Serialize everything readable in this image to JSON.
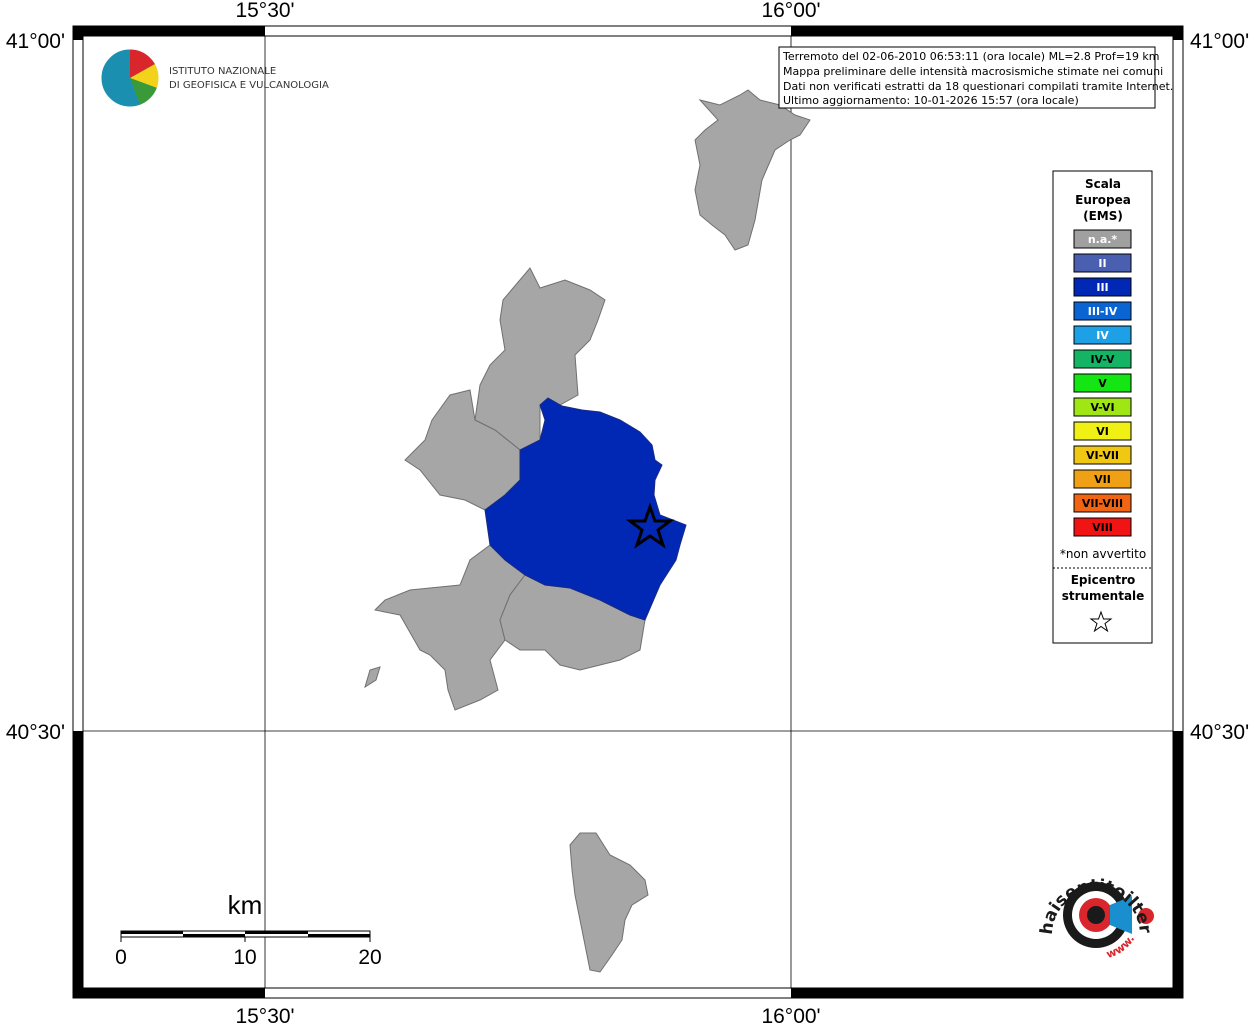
{
  "axes": {
    "top": [
      "15°30'",
      "16°00'"
    ],
    "bottom": [
      "15°30'",
      "16°00'"
    ],
    "left": [
      "41°00'",
      "40°30'"
    ],
    "right": [
      "41°00'",
      "40°30'"
    ]
  },
  "info_box": {
    "lines": [
      "Terremoto del 02-06-2010 06:53:11 (ora locale) ML=2.8 Prof=19 km",
      "Mappa preliminare delle intensità macrosismiche stimate nei comuni",
      "Dati non verificati estratti da 18 questionari compilati tramite Internet.",
      "Ultimo aggiornamento: 10-01-2026 15:57 (ora locale)"
    ]
  },
  "logo": {
    "lines": [
      "ISTITUTO NAZIONALE",
      "DI GEOFISICA E VULCANOLOGIA"
    ]
  },
  "legend": {
    "title": [
      "Scala",
      "Europea",
      "(EMS)"
    ],
    "items": [
      {
        "label": "n.a.*",
        "color": "#a0a0a0",
        "text_color": "#ffffff"
      },
      {
        "label": "II",
        "color": "#4a5fb0",
        "text_color": "#ffffff"
      },
      {
        "label": "III",
        "color": "#0028b4",
        "text_color": "#ffffff"
      },
      {
        "label": "III-IV",
        "color": "#0a64d2",
        "text_color": "#ffffff"
      },
      {
        "label": "IV",
        "color": "#1ea0e6",
        "text_color": "#ffffff"
      },
      {
        "label": "IV-V",
        "color": "#14b464",
        "text_color": "#000000"
      },
      {
        "label": "V",
        "color": "#14e614",
        "text_color": "#000000"
      },
      {
        "label": "V-VI",
        "color": "#a0e614",
        "text_color": "#000000"
      },
      {
        "label": "VI",
        "color": "#f0f014",
        "text_color": "#000000"
      },
      {
        "label": "VI-VII",
        "color": "#f0c814",
        "text_color": "#000000"
      },
      {
        "label": "VII",
        "color": "#f0a014",
        "text_color": "#000000"
      },
      {
        "label": "VII-VIII",
        "color": "#f06414",
        "text_color": "#000000"
      },
      {
        "label": "VIII",
        "color": "#f01414",
        "text_color": "#000000"
      }
    ],
    "note": "*non avvertito",
    "epicenter": [
      "Epicentro",
      "strumentale"
    ]
  },
  "scale_bar": {
    "unit": "km",
    "labels": [
      "0",
      "10",
      "20"
    ]
  },
  "watermark": {
    "text": "haisentitoilterremoto.it",
    "prefix": "www."
  }
}
